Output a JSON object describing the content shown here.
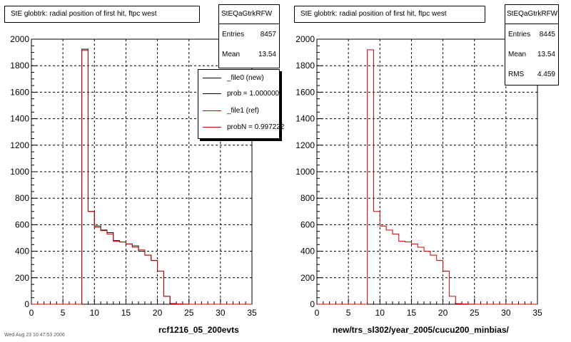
{
  "colors": {
    "new": "#000000",
    "ref": "#cc0000",
    "grid": "#000000",
    "frame": "#000000"
  },
  "footer": "Wed Aug 23 10:47:53 2006",
  "panels": [
    {
      "title": "StE globtrk: radial position of first hit, ftpc west",
      "stats": {
        "name": "StEQaGtrkRFW",
        "rows": [
          {
            "label": "Entries",
            "value": "8457"
          },
          {
            "label": "Mean",
            "value": "13.54"
          }
        ]
      },
      "legend": [
        {
          "label": "_file0 (new)",
          "color": "#000000"
        },
        {
          "label": "prob = 1.000000",
          "color": "#000000"
        },
        {
          "label": "_file1 (ref)",
          "color": "#cc0000"
        },
        {
          "label": "probN = 0.997222",
          "color": "#cc0000"
        }
      ],
      "xlabel": "rcf1216_05_200evts"
    },
    {
      "title": "StE globtrk: radial position of first hit, ftpc west",
      "stats": {
        "name": "StEQaGtrkRFW",
        "rows": [
          {
            "label": "Entries",
            "value": "8445"
          },
          {
            "label": "Mean",
            "value": "13.54"
          },
          {
            "label": "RMS",
            "value": "4.459"
          }
        ]
      },
      "xlabel": "new/trs_sl302/year_2005/cucu200_minbias/"
    }
  ],
  "chart_data": [
    {
      "type": "histogram",
      "title": "StE globtrk: radial position of first hit, ftpc west",
      "xlabel": "rcf1216_05_200evts",
      "ylabel": "",
      "xlim": [
        0,
        35
      ],
      "ylim": [
        0,
        2000
      ],
      "xticks": [
        0,
        5,
        10,
        15,
        20,
        25,
        30,
        35
      ],
      "yticks": [
        0,
        200,
        400,
        600,
        800,
        1000,
        1200,
        1400,
        1600,
        1800,
        2000
      ],
      "grid": true,
      "legend_position": "top-right",
      "bin_edges": [
        0,
        1,
        2,
        3,
        4,
        5,
        6,
        7,
        8,
        9,
        10,
        11,
        12,
        13,
        14,
        15,
        16,
        17,
        18,
        19,
        20,
        21,
        22,
        23,
        24,
        25,
        26,
        27,
        28,
        29,
        30,
        31,
        32,
        33,
        34,
        35
      ],
      "series": [
        {
          "name": "_file0 (new)",
          "color": "#000000",
          "values": [
            0,
            0,
            0,
            0,
            0,
            0,
            0,
            0,
            1925,
            700,
            590,
            560,
            540,
            480,
            470,
            455,
            440,
            400,
            370,
            330,
            250,
            60,
            5,
            2,
            1,
            0,
            0,
            0,
            0,
            0,
            0,
            0,
            0,
            0,
            0
          ]
        },
        {
          "name": "_file1 (ref)",
          "color": "#cc0000",
          "values": [
            0,
            0,
            0,
            0,
            0,
            0,
            0,
            0,
            1915,
            700,
            580,
            555,
            530,
            475,
            470,
            455,
            430,
            410,
            370,
            330,
            250,
            60,
            5,
            2,
            1,
            0,
            0,
            0,
            0,
            0,
            0,
            0,
            0,
            0,
            0
          ]
        }
      ]
    },
    {
      "type": "histogram",
      "title": "StE globtrk: radial position of first hit, ftpc west",
      "xlabel": "new/trs_sl302/year_2005/cucu200_minbias/",
      "ylabel": "",
      "xlim": [
        0,
        35
      ],
      "ylim": [
        0,
        2000
      ],
      "xticks": [
        0,
        5,
        10,
        15,
        20,
        25,
        30,
        35
      ],
      "yticks": [
        0,
        200,
        400,
        600,
        800,
        1000,
        1200,
        1400,
        1600,
        1800,
        2000
      ],
      "grid": true,
      "bin_edges": [
        0,
        1,
        2,
        3,
        4,
        5,
        6,
        7,
        8,
        9,
        10,
        11,
        12,
        13,
        14,
        15,
        16,
        17,
        18,
        19,
        20,
        21,
        22,
        23,
        24,
        25,
        26,
        27,
        28,
        29,
        30,
        31,
        32,
        33,
        34,
        35
      ],
      "series": [
        {
          "name": "_file1 (ref)",
          "color": "#cc0000",
          "values": [
            0,
            0,
            0,
            0,
            0,
            0,
            0,
            0,
            1920,
            700,
            590,
            560,
            530,
            475,
            470,
            455,
            430,
            400,
            370,
            330,
            250,
            60,
            5,
            2,
            1,
            0,
            0,
            0,
            0,
            0,
            0,
            0,
            0,
            0,
            0
          ]
        }
      ]
    }
  ]
}
